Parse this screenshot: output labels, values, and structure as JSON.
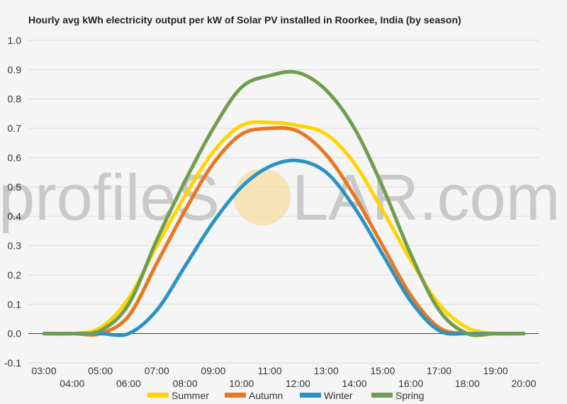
{
  "chart_data": {
    "type": "line",
    "title": "Hourly avg kWh electricity output per kW of Solar PV installed in Roorkee, India (by season)",
    "x": [
      "03:00",
      "04:00",
      "05:00",
      "06:00",
      "07:00",
      "08:00",
      "09:00",
      "10:00",
      "11:00",
      "12:00",
      "13:00",
      "14:00",
      "15:00",
      "16:00",
      "17:00",
      "18:00",
      "19:00",
      "20:00"
    ],
    "ylim": [
      -0.1,
      1.0
    ],
    "yticks": [
      "1.0",
      "0.9",
      "0.8",
      "0.7",
      "0.6",
      "0.5",
      "0.4",
      "0.3",
      "0.2",
      "0.1",
      "0.0",
      "-0.1"
    ],
    "ytick_values": [
      1.0,
      0.9,
      0.8,
      0.7,
      0.6,
      0.5,
      0.4,
      0.3,
      0.2,
      0.1,
      0.0,
      -0.1
    ],
    "grid": true,
    "legend_position": "bottom",
    "series": [
      {
        "name": "Summer",
        "color": "#ffd400",
        "values": [
          0.0,
          0.0,
          0.02,
          0.12,
          0.3,
          0.47,
          0.62,
          0.71,
          0.72,
          0.71,
          0.68,
          0.58,
          0.42,
          0.25,
          0.1,
          0.02,
          0.0,
          0.0
        ]
      },
      {
        "name": "Autumn",
        "color": "#e87722",
        "values": [
          0.0,
          0.0,
          0.0,
          0.06,
          0.24,
          0.42,
          0.58,
          0.68,
          0.7,
          0.69,
          0.61,
          0.47,
          0.3,
          0.13,
          0.02,
          0.0,
          0.0,
          0.0
        ]
      },
      {
        "name": "Winter",
        "color": "#2a93c5",
        "values": [
          0.0,
          0.0,
          0.0,
          0.0,
          0.08,
          0.23,
          0.38,
          0.5,
          0.57,
          0.59,
          0.55,
          0.43,
          0.27,
          0.11,
          0.01,
          0.0,
          0.0,
          0.0
        ]
      },
      {
        "name": "Spring",
        "color": "#6e9e4f",
        "values": [
          0.0,
          0.0,
          0.01,
          0.1,
          0.32,
          0.52,
          0.7,
          0.84,
          0.88,
          0.89,
          0.83,
          0.7,
          0.5,
          0.27,
          0.08,
          0.0,
          0.0,
          0.0
        ]
      }
    ]
  },
  "watermark": {
    "text_left": "profileS",
    "text_right": "LAR.com",
    "sun_color": "#f6dca0"
  }
}
